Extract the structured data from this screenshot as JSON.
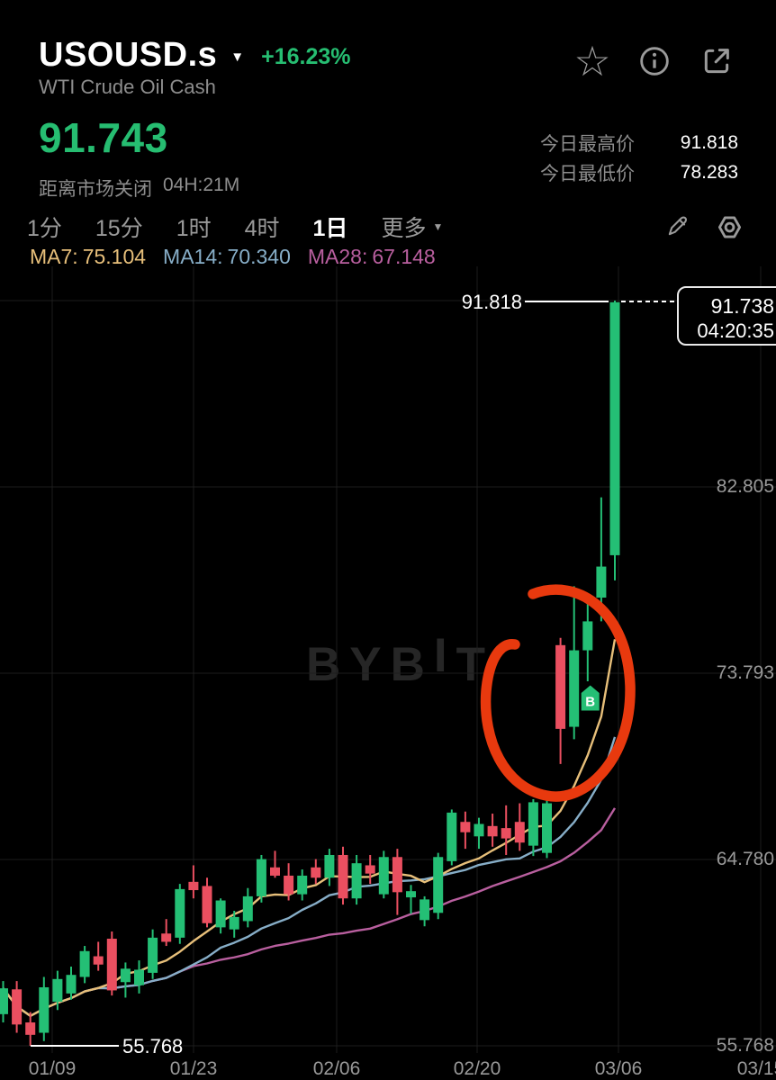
{
  "colors": {
    "green": "#24bf75",
    "red": "#ea4f60",
    "grid": "#1d1d1d",
    "annotation_red": "#e8390e",
    "muted_text": "#8d8d8d",
    "axis_text": "#999999",
    "watermark": "#262626",
    "icon_gray": "#9a9a9a",
    "ma7": "#e7bf7a",
    "ma14": "#87aec8",
    "ma28": "#b95f9f"
  },
  "icons": {
    "caret_down": "▼",
    "star": "☆",
    "edit_pencil": "pencil-icon",
    "info": "info-circle-icon",
    "share": "share-box-arrow-icon",
    "settings": "hexagon-nut-icon"
  },
  "header": {
    "symbol": "USOUSD.s",
    "change_percent": "+16.23%",
    "subtitle": "WTI Crude Oil Cash",
    "last_price": "91.743",
    "market_close_label": "距离市场关闭",
    "market_close_time": "04H:21M",
    "stats": [
      {
        "label": "今日最高价",
        "value": "91.818"
      },
      {
        "label": "今日最低价",
        "value": "78.283"
      }
    ]
  },
  "toolbar": {
    "timeframes": [
      "1分",
      "15分",
      "1时",
      "4时",
      "1日"
    ],
    "selected_timeframe": "1日",
    "more_label": "更多"
  },
  "indicators": [
    {
      "label": "MA7:",
      "value": "75.104",
      "window": 7,
      "color": "#e7bf7a"
    },
    {
      "label": "MA14:",
      "value": "70.340",
      "window": 14,
      "color": "#87aec8"
    },
    {
      "label": "MA28:",
      "value": "67.148",
      "window": 28,
      "color": "#b95f9f"
    }
  ],
  "chart_data": {
    "type": "candlestick",
    "symbol": "USOUSD.s",
    "timeframe": "1日",
    "watermark": "BYBIT",
    "watermark_parts": {
      "left": "BYB",
      "mid": "I",
      "right": "T"
    },
    "ylim": [
      55.0,
      93.5
    ],
    "y_gridlines": [
      91.818,
      82.805,
      73.793,
      64.78,
      55.768
    ],
    "y_axis_labels": [
      "82.805",
      "73.793",
      "64.780",
      "55.768"
    ],
    "x_axis_labels": [
      "01/09",
      "01/23",
      "02/06",
      "02/20",
      "03/06",
      "03/15"
    ],
    "high_label": "91.818",
    "low_label": "55.768",
    "price_tag": {
      "price": "91.738",
      "countdown": "04:20:35"
    },
    "buy_marker": "B",
    "annotation_note": "hand-drawn red circle highlighting gap-up reversal candles",
    "candles": [
      [
        57.3,
        58.9,
        56.9,
        58.55
      ],
      [
        58.5,
        58.9,
        56.4,
        56.8
      ],
      [
        56.9,
        57.4,
        55.77,
        56.3
      ],
      [
        56.4,
        59.1,
        56.0,
        58.6
      ],
      [
        57.9,
        59.4,
        57.5,
        59.0
      ],
      [
        58.3,
        59.6,
        58.0,
        59.2
      ],
      [
        59.1,
        60.6,
        58.8,
        60.35
      ],
      [
        60.1,
        60.8,
        59.4,
        59.7
      ],
      [
        60.95,
        61.3,
        58.2,
        58.45
      ],
      [
        58.85,
        59.8,
        58.1,
        59.5
      ],
      [
        58.7,
        59.9,
        58.3,
        59.45
      ],
      [
        59.3,
        61.4,
        59.0,
        61.0
      ],
      [
        61.2,
        61.9,
        60.6,
        60.8
      ],
      [
        61.0,
        63.6,
        60.7,
        63.35
      ],
      [
        63.7,
        64.5,
        62.9,
        63.3
      ],
      [
        63.5,
        63.9,
        61.5,
        61.7
      ],
      [
        61.5,
        62.9,
        61.2,
        62.8
      ],
      [
        61.4,
        62.3,
        61.0,
        62.0
      ],
      [
        61.8,
        63.4,
        61.5,
        63.0
      ],
      [
        63.0,
        65.0,
        62.7,
        64.8
      ],
      [
        64.4,
        65.2,
        63.9,
        64.0
      ],
      [
        64.0,
        64.6,
        62.8,
        63.1
      ],
      [
        63.1,
        64.3,
        62.8,
        64.0
      ],
      [
        64.4,
        64.8,
        63.6,
        63.9
      ],
      [
        63.9,
        65.3,
        63.5,
        65.0
      ],
      [
        65.0,
        65.4,
        62.6,
        62.9
      ],
      [
        62.9,
        65.0,
        62.6,
        64.6
      ],
      [
        64.5,
        65.0,
        63.6,
        64.1
      ],
      [
        63.1,
        65.2,
        62.9,
        64.9
      ],
      [
        64.9,
        65.3,
        62.1,
        63.2
      ],
      [
        62.95,
        63.55,
        62.15,
        63.25
      ],
      [
        61.85,
        63.0,
        61.55,
        62.85
      ],
      [
        62.2,
        65.1,
        61.9,
        64.9
      ],
      [
        64.7,
        67.2,
        64.5,
        67.05
      ],
      [
        66.6,
        67.1,
        65.3,
        66.1
      ],
      [
        65.9,
        66.8,
        65.3,
        66.5
      ],
      [
        66.4,
        67.0,
        65.4,
        65.9
      ],
      [
        66.3,
        67.4,
        65.0,
        65.8
      ],
      [
        66.6,
        67.5,
        65.2,
        65.6
      ],
      [
        65.45,
        67.7,
        64.95,
        67.55
      ],
      [
        65.1,
        67.75,
        64.85,
        67.5
      ],
      [
        75.15,
        75.5,
        69.4,
        71.1
      ],
      [
        71.2,
        78.0,
        70.6,
        74.9
      ],
      [
        74.9,
        77.3,
        73.4,
        76.3
      ],
      [
        77.45,
        82.3,
        76.3,
        78.95
      ],
      [
        79.5,
        91.818,
        78.283,
        91.738
      ]
    ]
  }
}
